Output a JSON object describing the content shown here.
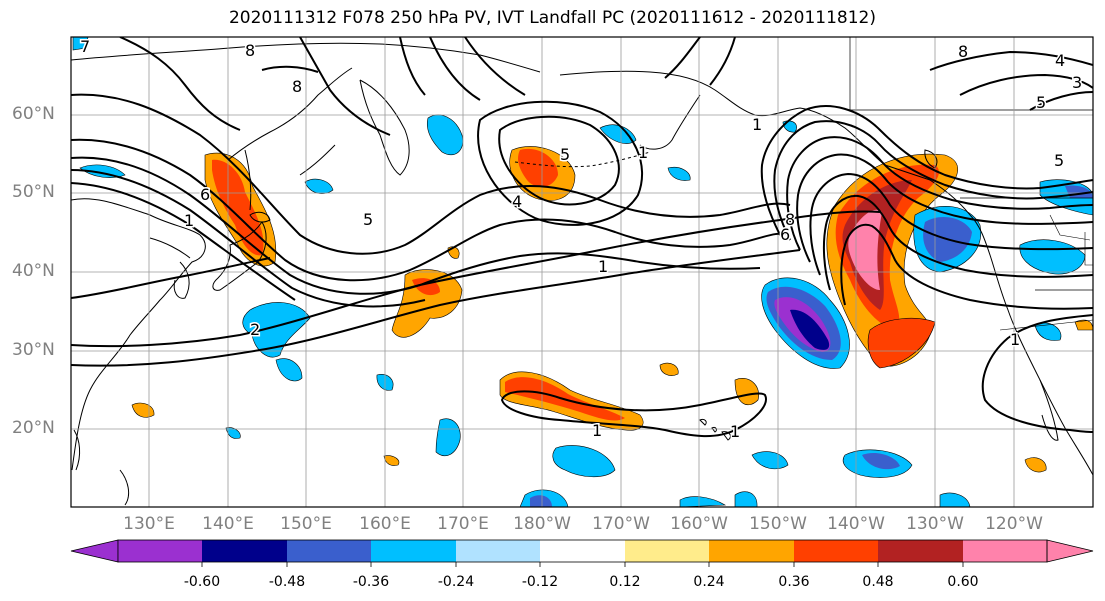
{
  "title": "2020111312 F078 250 hPa PV, IVT Landfall PC (2020111612 - 2020111812)",
  "lat_labels": [
    "60°N",
    "50°N",
    "40°N",
    "30°N",
    "20°N"
  ],
  "lon_labels": [
    "130°E",
    "140°E",
    "150°E",
    "160°E",
    "170°E",
    "180°W",
    "170°W",
    "160°W",
    "150°W",
    "140°W",
    "130°W",
    "120°W"
  ],
  "contour_labels": [
    "7",
    "8",
    "8",
    "6",
    "1",
    "5",
    "1",
    "5",
    "4",
    "1",
    "2",
    "1",
    "8",
    "6",
    "8",
    "5",
    "5",
    "4",
    "3",
    "1",
    "1",
    "1"
  ],
  "colorbar": {
    "levels": [
      "-0.60",
      "-0.48",
      "-0.36",
      "-0.24",
      "-0.12",
      "0.12",
      "0.24",
      "0.36",
      "0.48",
      "0.60"
    ],
    "colors": [
      "#9b30d0",
      "#00008b",
      "#3a5fcd",
      "#00bfff",
      "#b0e2ff",
      "#ffffff",
      "#ffec8b",
      "#ffa500",
      "#ff4000",
      "#b22222",
      "#ff82ab"
    ]
  },
  "colors": {
    "land": "#000000",
    "grid": "#9a9a9a",
    "contour": "#000000",
    "frame": "#000000"
  }
}
